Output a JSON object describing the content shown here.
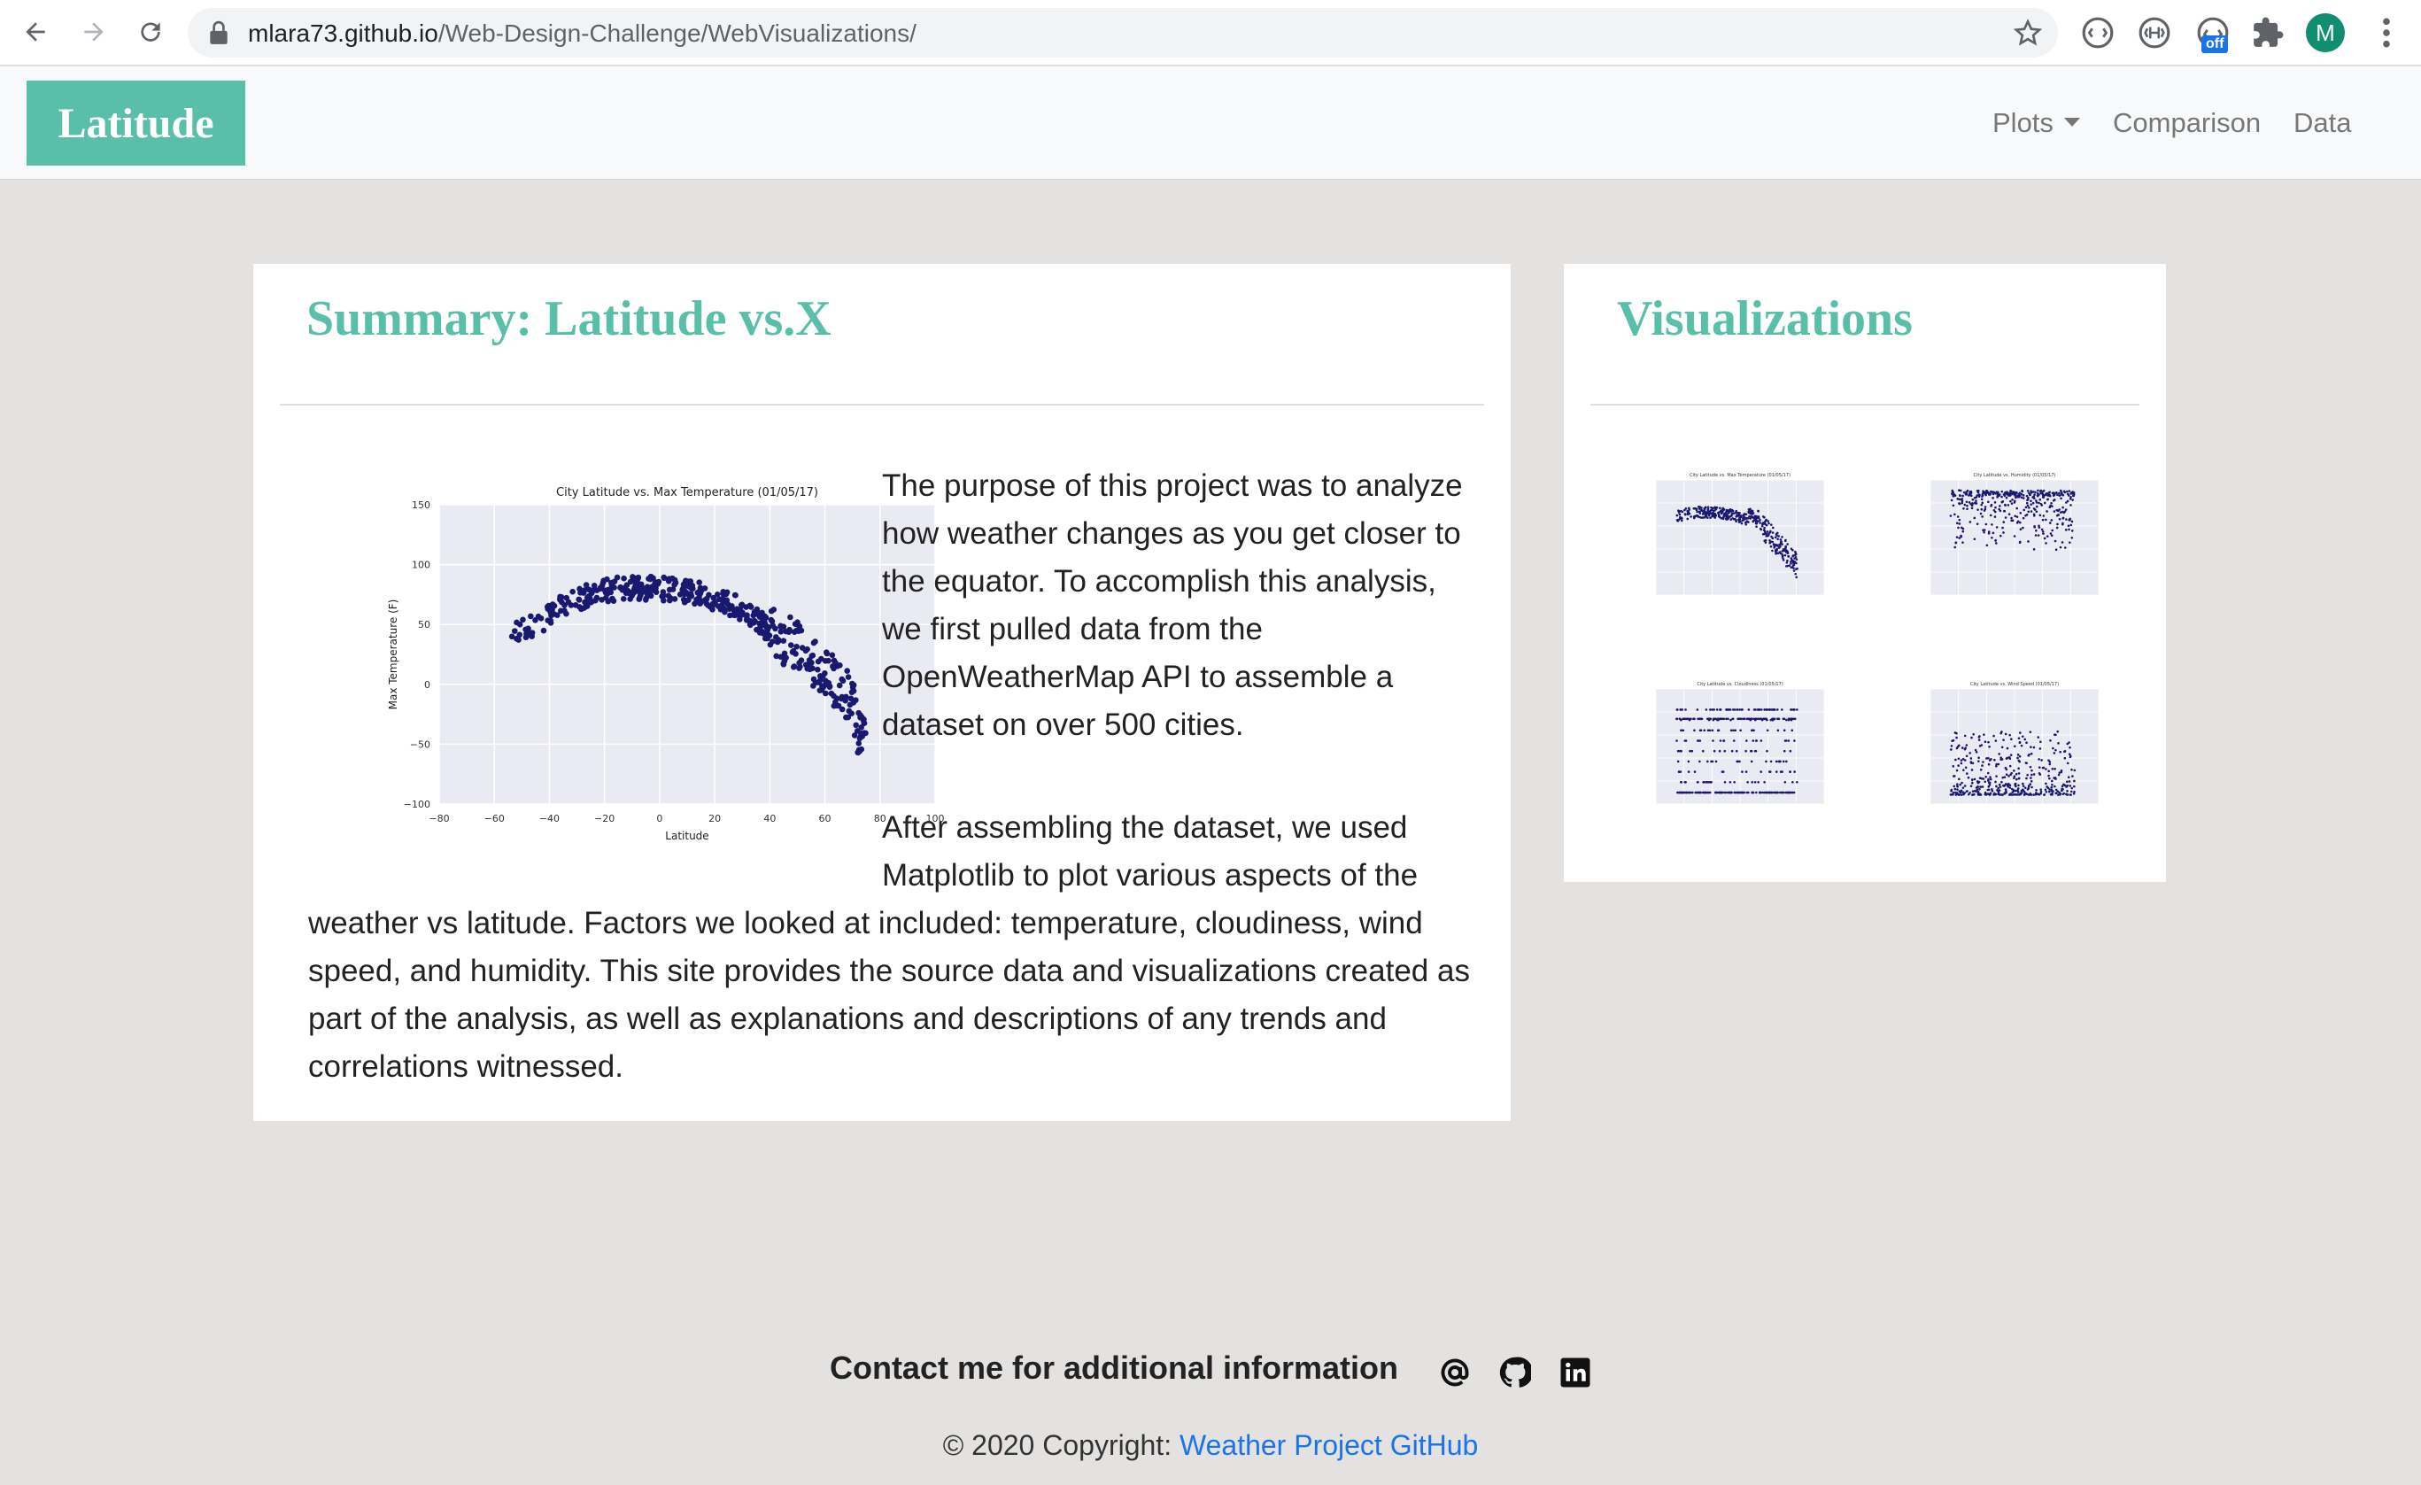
{
  "browser": {
    "url_host": "mlara73.github.io",
    "url_path": "/Web-Design-Challenge/WebVisualizations/",
    "extension_badge": "off",
    "avatar_letter": "M"
  },
  "navbar": {
    "brand": "Latitude",
    "links": [
      {
        "label": "Plots",
        "dropdown": true
      },
      {
        "label": "Comparison"
      },
      {
        "label": "Data"
      }
    ]
  },
  "summary": {
    "title": "Summary: Latitude vs.X",
    "paragraph1": "The purpose of this project was to analyze how weather changes as you get closer to the equator. To accomplish this analysis, we first pulled data from the OpenWeatherMap API to assemble a dataset on over 500 cities.",
    "paragraph2_wrapped": "After assembling the dataset, we used Matplotlib to plot various aspects of the",
    "paragraph2_rest": "weather vs latitude. Factors we looked at included: temperature, cloudiness, wind speed, and humidity. This site provides the source data and visualizations created as part of the analysis, as well as explanations and descriptions of any trends and correlations witnessed."
  },
  "visualizations": {
    "title": "Visualizations"
  },
  "chart_data": [
    {
      "type": "scatter",
      "title": "City Latitude vs. Max Temperature (01/05/17)",
      "xlabel": "Latitude",
      "ylabel": "Max Temperature (F)",
      "xlim": [
        -80,
        100
      ],
      "ylim": [
        -100,
        150
      ],
      "xticks": [
        -80,
        -60,
        -40,
        -20,
        0,
        20,
        40,
        60,
        80,
        100
      ],
      "yticks": [
        -100,
        -50,
        0,
        50,
        100,
        150
      ],
      "grid": true,
      "color": "#191970",
      "points_note_trend": [
        [
          -55,
          40
        ],
        [
          -45,
          50
        ],
        [
          -40,
          58
        ],
        [
          -35,
          65
        ],
        [
          -30,
          70
        ],
        [
          -25,
          75
        ],
        [
          -20,
          78
        ],
        [
          -15,
          80
        ],
        [
          -10,
          80
        ],
        [
          -5,
          80
        ],
        [
          0,
          80
        ],
        [
          5,
          79
        ],
        [
          10,
          78
        ],
        [
          15,
          75
        ],
        [
          20,
          72
        ],
        [
          25,
          68
        ],
        [
          30,
          62
        ],
        [
          35,
          55
        ],
        [
          40,
          45
        ],
        [
          45,
          38
        ],
        [
          50,
          30
        ],
        [
          55,
          22
        ],
        [
          60,
          10
        ],
        [
          65,
          0
        ],
        [
          70,
          -15
        ],
        [
          72,
          -40
        ],
        [
          75,
          -55
        ]
      ]
    },
    {
      "type": "scatter",
      "title": "City Latitude vs. Max Temperature (01/05/17)",
      "color": "#191970"
    },
    {
      "type": "scatter",
      "title": "City Latitude vs. Humidity (01/05/17)",
      "color": "#191970"
    },
    {
      "type": "scatter",
      "title": "City Latitude vs. Cloudiness (01/05/17)",
      "color": "#191970"
    },
    {
      "type": "scatter",
      "title": "City Latitude vs. Wind Speed (01/05/17)",
      "color": "#191970"
    }
  ],
  "footer": {
    "contact": "Contact me for additional information",
    "copyright_prefix": "© 2020 Copyright: ",
    "copyright_link": "Weather Project GitHub"
  }
}
